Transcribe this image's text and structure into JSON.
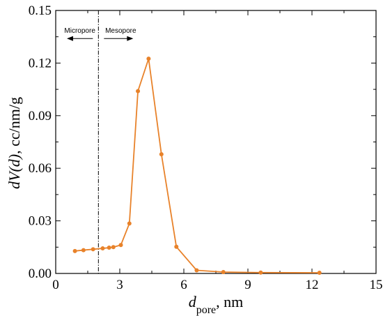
{
  "chart_data": {
    "type": "line",
    "xlabel": {
      "italic": "d",
      "subscript": "pore",
      "suffix": ", nm"
    },
    "ylabel": {
      "italic": "dV(d)",
      "suffix": ", cc/nm/g"
    },
    "xlim": [
      0,
      15
    ],
    "ylim": [
      0,
      0.15
    ],
    "x_ticks": [
      0,
      3,
      6,
      9,
      12,
      15
    ],
    "x_tick_labels": [
      "0",
      "3",
      "6",
      "9",
      "12",
      "15"
    ],
    "y_ticks": [
      0.0,
      0.03,
      0.06,
      0.09,
      0.12,
      0.15
    ],
    "y_tick_labels": [
      "0.00",
      "0.03",
      "0.06",
      "0.09",
      "0.12",
      "0.15"
    ],
    "grid": false,
    "series": [
      {
        "color": "#E8822A",
        "marker": "circle",
        "x": [
          0.9,
          1.3,
          1.75,
          2.2,
          2.5,
          2.7,
          3.05,
          3.45,
          3.85,
          4.35,
          4.95,
          5.65,
          6.6,
          7.85,
          9.6,
          12.35
        ],
        "y": [
          0.0128,
          0.0133,
          0.0138,
          0.0143,
          0.0147,
          0.015,
          0.0162,
          0.0285,
          0.104,
          0.1225,
          0.068,
          0.0152,
          0.0018,
          0.0008,
          0.0005,
          0.0004
        ]
      }
    ],
    "annotations": {
      "divider_x": 2.0,
      "divider_style": "dash-dot",
      "left_label": "Micropore",
      "right_label": "Mesopore",
      "arrow_y": 0.134
    }
  }
}
